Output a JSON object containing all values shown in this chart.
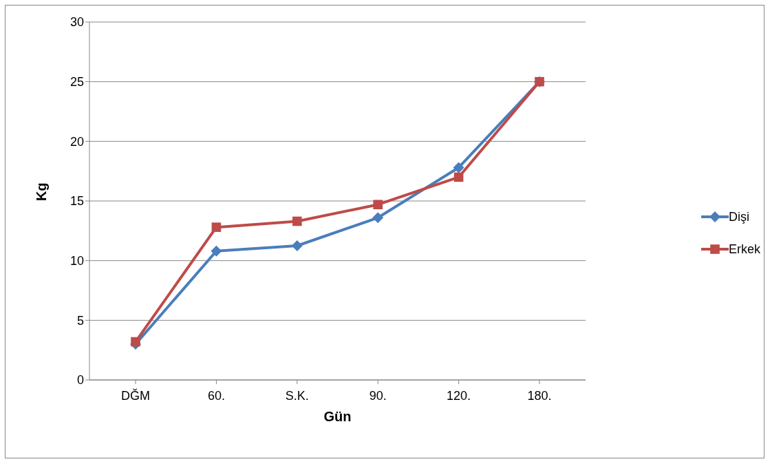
{
  "chart_data": {
    "type": "line",
    "xlabel": "Gün",
    "ylabel": "Kg",
    "categories": [
      "DĞM",
      "60.",
      "S.K.",
      "90.",
      "120.",
      "180."
    ],
    "series": [
      {
        "name": "Dişi",
        "color": "#4a7ebb",
        "marker": "diamond",
        "values": [
          3.0,
          10.8,
          11.25,
          13.6,
          17.8,
          25.0
        ]
      },
      {
        "name": "Erkek",
        "color": "#be4b48",
        "marker": "square",
        "values": [
          3.2,
          12.8,
          13.3,
          14.7,
          17.0,
          25.0
        ]
      }
    ],
    "ylim": [
      0,
      30
    ],
    "yticks": [
      0,
      5,
      10,
      15,
      20,
      25,
      30
    ],
    "grid": "y",
    "legend": "right"
  }
}
